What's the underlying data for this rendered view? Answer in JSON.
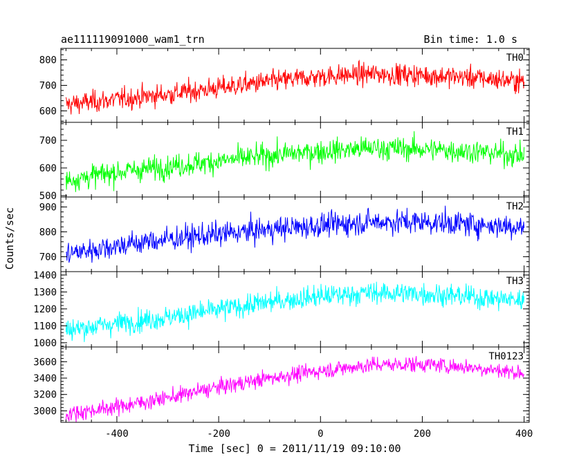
{
  "chart_data": {
    "type": "line",
    "title_left": "ae111119091000_wam1_trn",
    "title_right": "Bin time: 1.0 s",
    "xlabel": "Time [sec] 0 = 2011/11/19 09:10:00",
    "ylabel": "Counts/sec",
    "xlim": [
      -510,
      410
    ],
    "x_ticks": [
      -400,
      -200,
      0,
      200,
      400
    ],
    "grid": false,
    "bin_time_s": 1.0,
    "x_range": [
      -500,
      400
    ],
    "panels": [
      {
        "name": "TH0",
        "color": "#ff0000",
        "ylim": [
          555,
          845
        ],
        "y_ticks": [
          600,
          700,
          800
        ],
        "trend": [
          {
            "x": -500,
            "y": 625
          },
          {
            "x": -400,
            "y": 645
          },
          {
            "x": -300,
            "y": 665
          },
          {
            "x": -200,
            "y": 690
          },
          {
            "x": -100,
            "y": 715
          },
          {
            "x": 0,
            "y": 735
          },
          {
            "x": 100,
            "y": 745
          },
          {
            "x": 200,
            "y": 740
          },
          {
            "x": 300,
            "y": 730
          },
          {
            "x": 400,
            "y": 715
          }
        ],
        "noise_sd": 26
      },
      {
        "name": "TH1",
        "color": "#00ff00",
        "ylim": [
          495,
          765
        ],
        "y_ticks": [
          500,
          600,
          700
        ],
        "trend": [
          {
            "x": -500,
            "y": 555
          },
          {
            "x": -400,
            "y": 585
          },
          {
            "x": -300,
            "y": 605
          },
          {
            "x": -200,
            "y": 625
          },
          {
            "x": -100,
            "y": 645
          },
          {
            "x": 0,
            "y": 660
          },
          {
            "x": 100,
            "y": 672
          },
          {
            "x": 200,
            "y": 668
          },
          {
            "x": 300,
            "y": 660
          },
          {
            "x": 400,
            "y": 645
          }
        ],
        "noise_sd": 26
      },
      {
        "name": "TH2",
        "color": "#0000ff",
        "ylim": [
          640,
          940
        ],
        "y_ticks": [
          700,
          800,
          900
        ],
        "trend": [
          {
            "x": -500,
            "y": 710
          },
          {
            "x": -400,
            "y": 745
          },
          {
            "x": -300,
            "y": 770
          },
          {
            "x": -200,
            "y": 790
          },
          {
            "x": -100,
            "y": 810
          },
          {
            "x": 0,
            "y": 825
          },
          {
            "x": 100,
            "y": 840
          },
          {
            "x": 200,
            "y": 840
          },
          {
            "x": 300,
            "y": 830
          },
          {
            "x": 400,
            "y": 820
          }
        ],
        "noise_sd": 30
      },
      {
        "name": "TH3",
        "color": "#00ffff",
        "ylim": [
          975,
          1420
        ],
        "y_ticks": [
          1000,
          1100,
          1200,
          1300,
          1400
        ],
        "trend": [
          {
            "x": -500,
            "y": 1075
          },
          {
            "x": -400,
            "y": 1115
          },
          {
            "x": -300,
            "y": 1150
          },
          {
            "x": -200,
            "y": 1195
          },
          {
            "x": -100,
            "y": 1240
          },
          {
            "x": 0,
            "y": 1275
          },
          {
            "x": 100,
            "y": 1295
          },
          {
            "x": 200,
            "y": 1290
          },
          {
            "x": 300,
            "y": 1270
          },
          {
            "x": 400,
            "y": 1250
          }
        ],
        "noise_sd": 40
      },
      {
        "name": "TH0123",
        "color": "#ff00ff",
        "ylim": [
          2860,
          3780
        ],
        "y_ticks": [
          3000,
          3200,
          3400,
          3600
        ],
        "trend": [
          {
            "x": -500,
            "y": 2960
          },
          {
            "x": -400,
            "y": 3050
          },
          {
            "x": -300,
            "y": 3160
          },
          {
            "x": -200,
            "y": 3290
          },
          {
            "x": -100,
            "y": 3400
          },
          {
            "x": 0,
            "y": 3490
          },
          {
            "x": 100,
            "y": 3560
          },
          {
            "x": 200,
            "y": 3570
          },
          {
            "x": 300,
            "y": 3530
          },
          {
            "x": 400,
            "y": 3460
          }
        ],
        "noise_sd": 60
      }
    ]
  }
}
